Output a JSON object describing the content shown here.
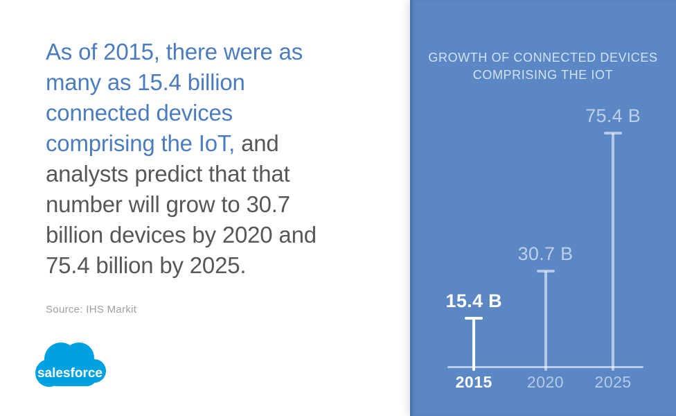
{
  "left_panel": {
    "headline_lines": [
      {
        "blue": "As of 2015, there were as",
        "gray": ""
      },
      {
        "blue": "many as 15.4 billion",
        "gray": ""
      },
      {
        "blue": "connected devices",
        "gray": ""
      },
      {
        "blue": "comprising the IoT,",
        "gray": " and"
      },
      {
        "blue": "",
        "gray": "analysts predict that that"
      },
      {
        "blue": "",
        "gray": "number will grow to 30.7"
      },
      {
        "blue": "",
        "gray": "billion devices by 2020 and"
      },
      {
        "blue": "",
        "gray": "75.4 billion by 2025."
      }
    ],
    "headline_full": "As of 2015, there were as many as 15.4 billion connected devices comprising the IoT, and analysts predict that that number will grow to 30.7 billion devices by 2020 and 75.4 billion by 2025.",
    "source": "Source: IHS Markit",
    "logo_text": "salesforce"
  },
  "right_panel": {
    "title_line1": "GROWTH OF CONNECTED DEVICES",
    "title_line2": "COMPRISING THE IOT"
  },
  "chart_data": {
    "type": "bar",
    "style": "lollipop",
    "title": "GROWTH OF CONNECTED DEVICES COMPRISING THE IOT",
    "categories": [
      "2015",
      "2020",
      "2025"
    ],
    "values": [
      15.4,
      30.7,
      75.4
    ],
    "value_labels": [
      "15.4 B",
      "30.7 B",
      "75.4 B"
    ],
    "unit": "B",
    "ylim": [
      0,
      75.4
    ],
    "grid": false,
    "legend": "none",
    "highlight_category": "2015"
  },
  "colors": {
    "headline_blue": "#4b7cbe",
    "body_gray": "#54585b",
    "source_gray": "#9aa1a6",
    "panel_blue": "#5b88c5",
    "panel_title": "#d3e2f4",
    "highlight_white": "#ffffff",
    "muted_white": "rgba(255,255,255,0.55)",
    "salesforce_blue": "#00a1e0"
  }
}
